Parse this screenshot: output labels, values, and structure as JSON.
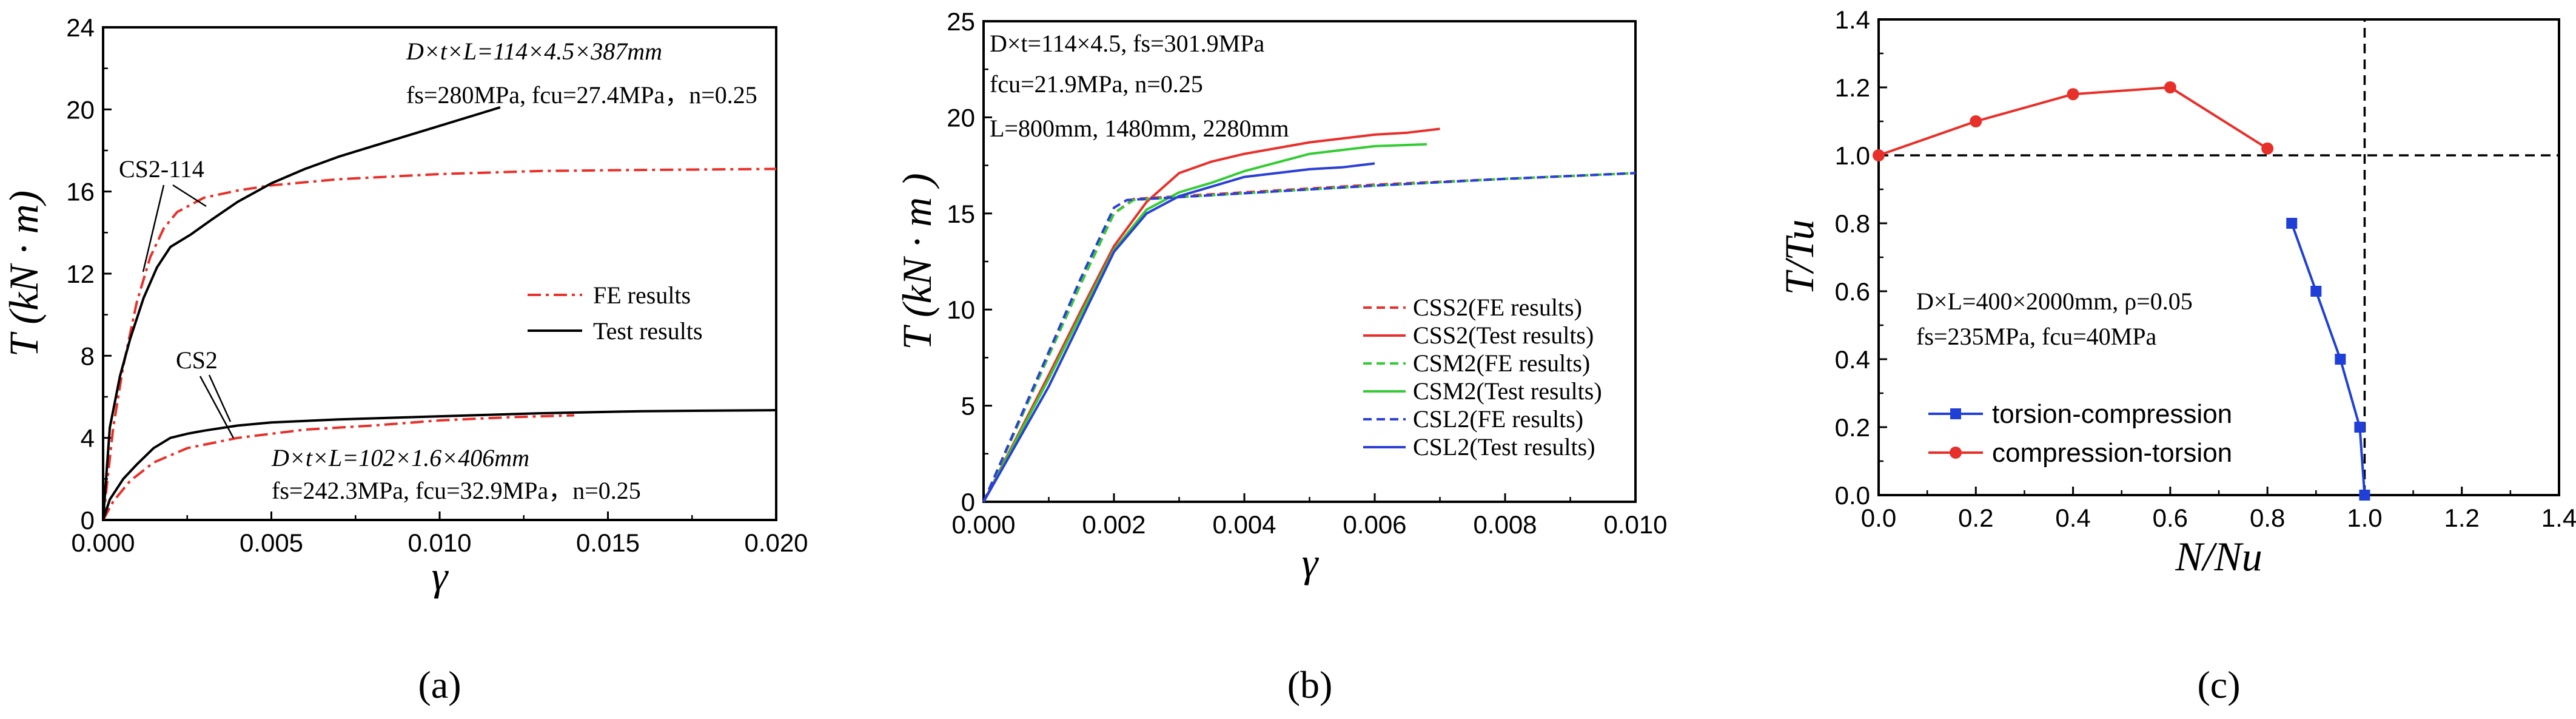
{
  "chart_data": [
    {
      "type": "line",
      "panel_label": "(a)",
      "xlabel": "γ",
      "ylabel": "T (kN · m)",
      "xlim": [
        0,
        0.02
      ],
      "ylim": [
        0,
        24
      ],
      "x_ticks": [
        "0.000",
        "0.005",
        "0.010",
        "0.015",
        "0.020"
      ],
      "y_ticks": [
        "0",
        "4",
        "8",
        "12",
        "16",
        "20",
        "24"
      ],
      "legend": [
        {
          "label": "FE results",
          "color": "#e8302a",
          "dash": "dashdot"
        },
        {
          "label": "Test results",
          "color": "#000000",
          "dash": "solid"
        }
      ],
      "annotations": [
        {
          "text": "D×t×L=114×4.5×387mm",
          "kind": "top_params_1"
        },
        {
          "text": "fs=280MPa, fcu=27.4MPa，n=0.25",
          "kind": "top_params_2"
        },
        {
          "text": "CS2-114",
          "kind": "label_upper"
        },
        {
          "text": "CS2",
          "kind": "label_lower"
        },
        {
          "text": "D×t×L=102×1.6×406mm",
          "kind": "bottom_params_1"
        },
        {
          "text": "fs=242.3MPa, fcu=32.9MPa，n=0.25",
          "kind": "bottom_params_2"
        }
      ],
      "series": [
        {
          "group": "CS2-114",
          "legend_ref": "FE results",
          "color": "#e8302a",
          "dash": "dashdot",
          "x": [
            0,
            0.0003,
            0.0006,
            0.001,
            0.0014,
            0.0018,
            0.0022,
            0.003,
            0.004,
            0.005,
            0.007,
            0.01,
            0.013,
            0.016,
            0.02
          ],
          "y": [
            0,
            4.5,
            7.5,
            10.6,
            12.8,
            14.2,
            15.0,
            15.7,
            16.05,
            16.3,
            16.6,
            16.85,
            17.0,
            17.05,
            17.1
          ]
        },
        {
          "group": "CS2-114",
          "legend_ref": "Test results",
          "color": "#000000",
          "dash": "solid",
          "x": [
            0,
            0.0002,
            0.0005,
            0.0008,
            0.0012,
            0.0016,
            0.002,
            0.0026,
            0.0032,
            0.004,
            0.005,
            0.006,
            0.007,
            0.008,
            0.009,
            0.01,
            0.011,
            0.0118
          ],
          "y": [
            0,
            4.5,
            7.0,
            8.8,
            10.8,
            12.3,
            13.3,
            13.9,
            14.6,
            15.5,
            16.4,
            17.1,
            17.7,
            18.2,
            18.7,
            19.2,
            19.7,
            20.1
          ]
        },
        {
          "group": "CS2",
          "legend_ref": "FE results",
          "color": "#e8302a",
          "dash": "dashdot",
          "x": [
            0,
            0.0003,
            0.0008,
            0.0015,
            0.0025,
            0.004,
            0.006,
            0.008,
            0.01,
            0.012,
            0.014
          ],
          "y": [
            0,
            0.9,
            1.9,
            2.8,
            3.5,
            4.0,
            4.4,
            4.6,
            4.85,
            5.0,
            5.1
          ]
        },
        {
          "group": "CS2",
          "legend_ref": "Test results",
          "color": "#000000",
          "dash": "solid",
          "x": [
            0,
            0.0002,
            0.0006,
            0.001,
            0.0015,
            0.002,
            0.0025,
            0.003,
            0.004,
            0.005,
            0.007,
            0.01,
            0.013,
            0.016,
            0.02
          ],
          "y": [
            0,
            1.0,
            2.0,
            2.7,
            3.5,
            4.0,
            4.2,
            4.35,
            4.6,
            4.75,
            4.9,
            5.05,
            5.2,
            5.3,
            5.35
          ]
        }
      ]
    },
    {
      "type": "line",
      "panel_label": "(b)",
      "xlabel": "γ",
      "ylabel": "T (kN · m )",
      "xlim": [
        0,
        0.01
      ],
      "ylim": [
        0,
        25
      ],
      "x_ticks": [
        "0.000",
        "0.002",
        "0.004",
        "0.006",
        "0.008",
        "0.010"
      ],
      "y_ticks": [
        "0",
        "5",
        "10",
        "15",
        "20",
        "25"
      ],
      "annotations": [
        {
          "text": "D×t=114×4.5, fs=301.9MPa",
          "kind": "params_1"
        },
        {
          "text": "fcu=21.9MPa, n=0.25",
          "kind": "params_2"
        },
        {
          "text": "L=800mm, 1480mm, 2280mm",
          "kind": "params_3"
        }
      ],
      "legend": [
        {
          "label": "CSS2(FE results)",
          "color": "#e8302a",
          "dash": "dashed"
        },
        {
          "label": "CSS2(Test results)",
          "color": "#e8302a",
          "dash": "solid"
        },
        {
          "label": "CSM2(FE results)",
          "color": "#33cc33",
          "dash": "dashed"
        },
        {
          "label": "CSM2(Test results)",
          "color": "#33cc33",
          "dash": "solid"
        },
        {
          "label": "CSL2(FE results)",
          "color": "#2b3fd6",
          "dash": "dashed"
        },
        {
          "label": "CSL2(Test results)",
          "color": "#2b3fd6",
          "dash": "solid"
        }
      ],
      "series": [
        {
          "name": "CSS2(FE results)",
          "color": "#e8302a",
          "dash": "dashed",
          "x": [
            0,
            0.0005,
            0.001,
            0.0015,
            0.002,
            0.0023,
            0.003,
            0.004,
            0.006,
            0.008,
            0.01
          ],
          "y": [
            0,
            3.8,
            7.6,
            11.4,
            15.0,
            15.75,
            15.9,
            16.1,
            16.5,
            16.8,
            17.1
          ]
        },
        {
          "name": "CSS2(Test results)",
          "color": "#e8302a",
          "dash": "solid",
          "x": [
            0,
            0.0005,
            0.001,
            0.0015,
            0.002,
            0.0025,
            0.003,
            0.0035,
            0.004,
            0.005,
            0.006,
            0.0065,
            0.007
          ],
          "y": [
            0,
            3.3,
            6.6,
            10.0,
            13.3,
            15.6,
            17.1,
            17.7,
            18.1,
            18.7,
            19.1,
            19.2,
            19.4
          ]
        },
        {
          "name": "CSM2(FE results)",
          "color": "#33cc33",
          "dash": "dashed",
          "x": [
            0,
            0.0005,
            0.001,
            0.0015,
            0.002,
            0.0023,
            0.003,
            0.004,
            0.006,
            0.008,
            0.01
          ],
          "y": [
            0,
            3.8,
            7.6,
            11.4,
            15.0,
            15.7,
            15.85,
            16.05,
            16.45,
            16.8,
            17.1
          ]
        },
        {
          "name": "CSM2(Test results)",
          "color": "#33cc33",
          "dash": "solid",
          "x": [
            0,
            0.0005,
            0.001,
            0.0015,
            0.002,
            0.0025,
            0.003,
            0.0035,
            0.004,
            0.005,
            0.006,
            0.0068
          ],
          "y": [
            0,
            3.2,
            6.4,
            9.8,
            13.1,
            15.2,
            16.1,
            16.6,
            17.2,
            18.1,
            18.5,
            18.6
          ]
        },
        {
          "name": "CSL2(FE results)",
          "color": "#2b3fd6",
          "dash": "dashed",
          "x": [
            0,
            0.0005,
            0.001,
            0.0015,
            0.002,
            0.0022,
            0.003,
            0.004,
            0.006,
            0.008,
            0.01
          ],
          "y": [
            0,
            3.9,
            7.8,
            11.7,
            15.3,
            15.7,
            15.85,
            16.05,
            16.45,
            16.8,
            17.1
          ]
        },
        {
          "name": "CSL2(Test results)",
          "color": "#2b3fd6",
          "dash": "solid",
          "x": [
            0,
            0.0005,
            0.001,
            0.0015,
            0.002,
            0.0025,
            0.003,
            0.0035,
            0.004,
            0.005,
            0.0055,
            0.006
          ],
          "y": [
            0,
            3.0,
            6.0,
            9.5,
            13.0,
            15.0,
            15.9,
            16.4,
            16.9,
            17.3,
            17.4,
            17.6
          ]
        }
      ]
    },
    {
      "type": "line",
      "panel_label": "(c)",
      "xlabel": "N/Nu",
      "ylabel": "T/Tu",
      "xlim": [
        0,
        1.4
      ],
      "ylim": [
        0,
        1.4
      ],
      "x_ticks": [
        "0.0",
        "0.2",
        "0.4",
        "0.6",
        "0.8",
        "1.0",
        "1.2",
        "1.4"
      ],
      "y_ticks": [
        "0.0",
        "0.2",
        "0.4",
        "0.6",
        "0.8",
        "1.0",
        "1.2",
        "1.4"
      ],
      "annotations": [
        {
          "text": "D×L=400×2000mm, ρ=0.05",
          "kind": "params_1"
        },
        {
          "text": "fs=235MPa, fcu=40MPa",
          "kind": "params_2"
        }
      ],
      "reference_lines": {
        "horizontal_at": 1.0,
        "vertical_at": 1.0
      },
      "legend": [
        {
          "label": "torsion-compression",
          "color": "#1f3fd6",
          "marker": "square"
        },
        {
          "label": "compression-torsion",
          "color": "#e8302a",
          "marker": "circle"
        }
      ],
      "series": [
        {
          "name": "torsion-compression",
          "color": "#1f3fd6",
          "marker": "square",
          "x": [
            0.85,
            0.9,
            0.95,
            0.99,
            1.0
          ],
          "y": [
            0.8,
            0.6,
            0.4,
            0.2,
            0.0
          ]
        },
        {
          "name": "compression-torsion",
          "color": "#e8302a",
          "marker": "circle",
          "x": [
            0.0,
            0.2,
            0.4,
            0.6,
            0.8
          ],
          "y": [
            1.0,
            1.1,
            1.18,
            1.2,
            1.02
          ]
        }
      ]
    }
  ]
}
